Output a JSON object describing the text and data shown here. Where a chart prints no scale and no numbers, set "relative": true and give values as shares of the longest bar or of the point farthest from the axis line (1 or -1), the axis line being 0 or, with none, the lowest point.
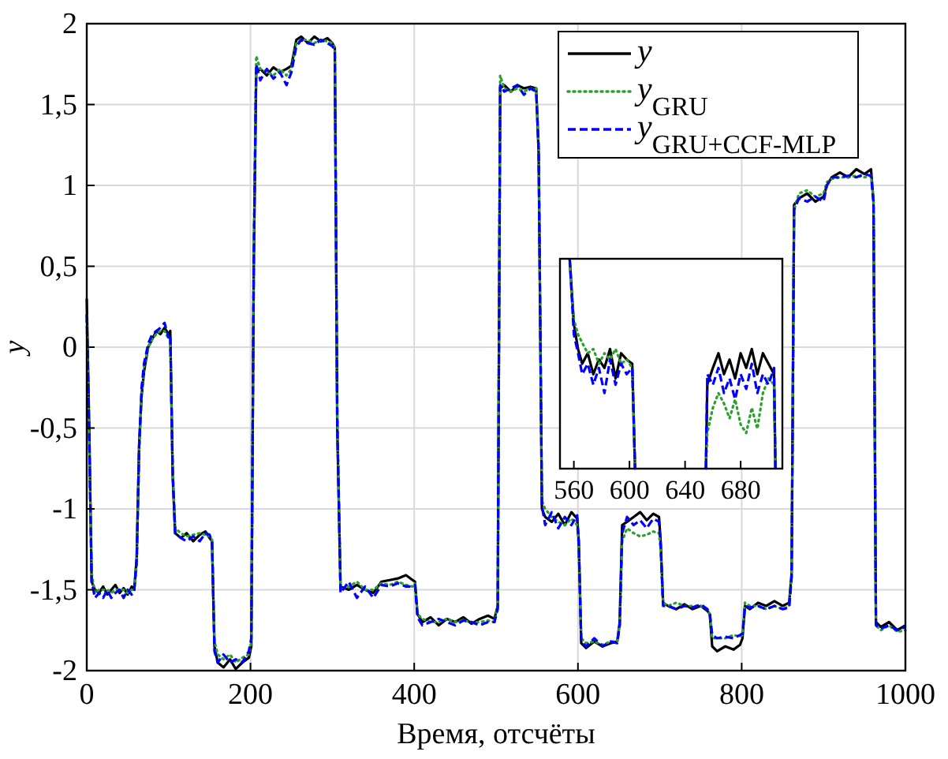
{
  "chart_data": [
    {
      "type": "line",
      "xlabel": "Время, отсчёты",
      "ylabel": "y",
      "xlim": [
        0,
        1000
      ],
      "ylim": [
        -2,
        2
      ],
      "xticks": [
        0,
        200,
        400,
        600,
        800,
        1000
      ],
      "yticks": [
        -2,
        {
          "value": -1.5,
          "label": "-1,5"
        },
        -1,
        {
          "value": -0.5,
          "label": "-0,5"
        },
        0,
        {
          "value": 0.5,
          "label": "0,5"
        },
        1,
        {
          "value": 1.5,
          "label": "1,5"
        },
        2
      ],
      "grid": true,
      "legend": "top right",
      "marker": "none",
      "x": [
        0,
        3,
        6,
        10,
        15,
        20,
        25,
        30,
        35,
        40,
        45,
        50,
        55,
        58,
        61,
        64,
        67,
        70,
        75,
        80,
        85,
        90,
        95,
        100,
        102,
        105,
        108,
        115,
        122,
        130,
        138,
        145,
        150,
        153,
        156,
        160,
        167,
        175,
        182,
        190,
        198,
        201,
        204,
        207,
        212,
        220,
        228,
        236,
        244,
        250,
        256,
        262,
        270,
        278,
        286,
        294,
        300,
        303,
        306,
        310,
        320,
        330,
        340,
        350,
        360,
        370,
        380,
        390,
        398,
        401,
        404,
        410,
        420,
        430,
        440,
        450,
        460,
        470,
        480,
        490,
        498,
        502,
        505,
        510,
        518,
        526,
        534,
        542,
        549,
        552,
        556,
        560,
        568,
        576,
        584,
        592,
        599,
        601,
        604,
        610,
        620,
        630,
        640,
        648,
        651,
        654,
        660,
        668,
        676,
        684,
        692,
        699,
        701,
        704,
        710,
        720,
        730,
        740,
        750,
        758,
        761,
        764,
        770,
        780,
        790,
        798,
        801,
        804,
        810,
        820,
        830,
        840,
        850,
        858,
        861,
        864,
        870,
        880,
        890,
        900,
        904,
        910,
        920,
        930,
        940,
        950,
        958,
        961,
        964,
        970,
        980,
        990,
        1000
      ],
      "series": [
        {
          "name": "y",
          "color": "#000000",
          "line_style": "solid",
          "values": [
            0.3,
            -0.5,
            -1.45,
            -1.5,
            -1.52,
            -1.48,
            -1.53,
            -1.5,
            -1.47,
            -1.52,
            -1.49,
            -1.53,
            -1.48,
            -1.5,
            -1.3,
            -0.6,
            -0.3,
            -0.15,
            0.0,
            0.05,
            0.1,
            0.08,
            0.12,
            0.08,
            0.1,
            -0.8,
            -1.15,
            -1.18,
            -1.15,
            -1.2,
            -1.16,
            -1.14,
            -1.18,
            -1.2,
            -1.85,
            -1.95,
            -1.98,
            -1.93,
            -1.99,
            -1.95,
            -1.92,
            -1.85,
            0.5,
            1.7,
            1.72,
            1.68,
            1.73,
            1.7,
            1.72,
            1.74,
            1.9,
            1.92,
            1.88,
            1.92,
            1.89,
            1.91,
            1.88,
            1.85,
            -0.5,
            -1.48,
            -1.5,
            -1.47,
            -1.5,
            -1.52,
            -1.45,
            -1.44,
            -1.43,
            -1.41,
            -1.44,
            -1.45,
            -1.65,
            -1.7,
            -1.67,
            -1.72,
            -1.68,
            -1.7,
            -1.67,
            -1.71,
            -1.68,
            -1.66,
            -1.68,
            -1.6,
            1.6,
            1.62,
            1.58,
            1.62,
            1.6,
            1.61,
            1.6,
            1.2,
            -1.0,
            -1.05,
            -1.08,
            -1.03,
            -1.1,
            -1.02,
            -1.06,
            -1.2,
            -1.83,
            -1.86,
            -1.82,
            -1.85,
            -1.83,
            -1.82,
            -1.7,
            -1.1,
            -1.08,
            -1.05,
            -1.02,
            -1.07,
            -1.03,
            -1.05,
            -1.2,
            -1.58,
            -1.6,
            -1.62,
            -1.59,
            -1.62,
            -1.6,
            -1.63,
            -1.65,
            -1.85,
            -1.88,
            -1.85,
            -1.87,
            -1.84,
            -1.8,
            -1.6,
            -1.62,
            -1.58,
            -1.6,
            -1.57,
            -1.6,
            -1.58,
            -1.4,
            0.88,
            0.92,
            0.95,
            0.9,
            0.93,
            1.0,
            1.05,
            1.08,
            1.05,
            1.1,
            1.07,
            1.1,
            0.9,
            -1.7,
            -1.73,
            -1.7,
            -1.75,
            -1.72
          ]
        },
        {
          "name": "y$_{GRU}$",
          "color": "#2ca02c",
          "line_style": "dotted",
          "values": [
            0.2,
            -0.6,
            -1.4,
            -1.52,
            -1.5,
            -1.5,
            -1.5,
            -1.52,
            -1.5,
            -1.5,
            -1.5,
            -1.52,
            -1.5,
            -1.5,
            -1.35,
            -0.65,
            -0.3,
            -0.12,
            0.0,
            0.05,
            0.08,
            0.1,
            0.1,
            0.05,
            0.05,
            -0.75,
            -1.12,
            -1.15,
            -1.17,
            -1.16,
            -1.15,
            -1.16,
            -1.17,
            -1.18,
            -1.82,
            -1.9,
            -1.93,
            -1.9,
            -1.95,
            -1.92,
            -1.9,
            -1.82,
            0.6,
            1.8,
            1.72,
            1.7,
            1.68,
            1.72,
            1.68,
            1.72,
            1.88,
            1.9,
            1.9,
            1.88,
            1.9,
            1.89,
            1.88,
            1.84,
            -0.4,
            -1.5,
            -1.48,
            -1.45,
            -1.5,
            -1.5,
            -1.46,
            -1.47,
            -1.45,
            -1.47,
            -1.48,
            -1.46,
            -1.65,
            -1.68,
            -1.7,
            -1.7,
            -1.68,
            -1.7,
            -1.69,
            -1.7,
            -1.7,
            -1.69,
            -1.7,
            -1.6,
            1.68,
            1.6,
            1.58,
            1.6,
            1.58,
            1.6,
            1.6,
            1.25,
            -0.95,
            -1.0,
            -1.05,
            -1.08,
            -1.1,
            -1.06,
            -1.1,
            -1.22,
            -1.8,
            -1.83,
            -1.82,
            -1.84,
            -1.82,
            -1.82,
            -1.72,
            -1.2,
            -1.12,
            -1.15,
            -1.17,
            -1.16,
            -1.14,
            -1.15,
            -1.25,
            -1.58,
            -1.6,
            -1.58,
            -1.6,
            -1.6,
            -1.6,
            -1.62,
            -1.65,
            -1.8,
            -1.8,
            -1.8,
            -1.78,
            -1.79,
            -1.78,
            -1.58,
            -1.6,
            -1.6,
            -1.62,
            -1.6,
            -1.62,
            -1.6,
            -1.42,
            0.85,
            0.95,
            0.97,
            0.93,
            0.95,
            1.02,
            1.04,
            1.05,
            1.05,
            1.06,
            1.05,
            1.06,
            0.92,
            -1.72,
            -1.75,
            -1.72,
            -1.76,
            -1.75
          ]
        },
        {
          "name": "y$_{GRU+CCF-MLP}$",
          "color": "#0000ff",
          "line_style": "dashed",
          "values": [
            0.2,
            -0.55,
            -1.45,
            -1.55,
            -1.52,
            -1.55,
            -1.5,
            -1.55,
            -1.52,
            -1.5,
            -1.55,
            -1.5,
            -1.53,
            -1.5,
            -1.32,
            -0.62,
            -0.25,
            -0.1,
            0.02,
            0.08,
            0.1,
            0.12,
            0.15,
            0.06,
            0.08,
            -0.78,
            -1.15,
            -1.18,
            -1.2,
            -1.17,
            -1.2,
            -1.15,
            -1.16,
            -1.2,
            -1.88,
            -1.95,
            -1.9,
            -1.95,
            -1.93,
            -1.95,
            -1.88,
            -1.8,
            0.55,
            1.75,
            1.65,
            1.72,
            1.66,
            1.7,
            1.62,
            1.7,
            1.86,
            1.9,
            1.88,
            1.87,
            1.9,
            1.88,
            1.86,
            1.84,
            -0.45,
            -1.52,
            -1.45,
            -1.55,
            -1.48,
            -1.55,
            -1.47,
            -1.48,
            -1.46,
            -1.48,
            -1.48,
            -1.47,
            -1.67,
            -1.72,
            -1.7,
            -1.68,
            -1.7,
            -1.72,
            -1.69,
            -1.7,
            -1.72,
            -1.7,
            -1.7,
            -1.62,
            1.62,
            1.58,
            1.6,
            1.62,
            1.56,
            1.6,
            1.58,
            1.22,
            -0.98,
            -1.1,
            -1.02,
            -1.12,
            -1.05,
            -1.1,
            -1.04,
            -1.22,
            -1.82,
            -1.85,
            -1.8,
            -1.85,
            -1.82,
            -1.83,
            -1.72,
            -1.15,
            -1.05,
            -1.1,
            -1.07,
            -1.12,
            -1.06,
            -1.08,
            -1.22,
            -1.6,
            -1.6,
            -1.62,
            -1.6,
            -1.61,
            -1.59,
            -1.62,
            -1.64,
            -1.78,
            -1.8,
            -1.79,
            -1.8,
            -1.78,
            -1.77,
            -1.6,
            -1.61,
            -1.6,
            -1.62,
            -1.6,
            -1.62,
            -1.61,
            -1.42,
            0.85,
            0.92,
            0.9,
            0.93,
            0.9,
            1.0,
            1.05,
            1.05,
            1.06,
            1.05,
            1.07,
            1.06,
            0.9,
            -1.72,
            -1.74,
            -1.72,
            -1.75,
            -1.73
          ]
        }
      ]
    },
    {
      "type": "line",
      "xlim": [
        550,
        710
      ],
      "xticks": [
        560,
        600,
        640,
        680
      ],
      "relative": true,
      "marker": "none",
      "x": [
        557,
        560,
        563,
        566,
        570,
        574,
        578,
        582,
        586,
        590,
        594,
        598,
        602,
        604,
        630,
        655,
        656,
        660,
        664,
        668,
        672,
        676,
        680,
        684,
        688,
        692,
        696,
        700,
        704,
        705
      ],
      "series": [
        {
          "color": "#000000",
          "line_style": "solid",
          "values": [
            1.0,
            0.69,
            0.57,
            0.5,
            0.55,
            0.45,
            0.52,
            0.48,
            0.57,
            0.43,
            0.55,
            0.52,
            0.5,
            0,
            null,
            0,
            0.4,
            0.48,
            0.55,
            0.45,
            0.52,
            0.43,
            0.55,
            0.48,
            0.57,
            0.45,
            0.55,
            0.5,
            0.45,
            0
          ]
        },
        {
          "color": "#2ca02c",
          "line_style": "dotted",
          "values": [
            0.98,
            0.71,
            0.64,
            0.6,
            0.55,
            0.57,
            0.5,
            0.55,
            0.52,
            0.57,
            0.5,
            0.52,
            0.48,
            0,
            null,
            0,
            0.17,
            0.29,
            0.36,
            0.31,
            0.24,
            0.33,
            0.21,
            0.17,
            0.29,
            0.19,
            0.36,
            0.43,
            0.4,
            0
          ]
        },
        {
          "color": "#0000ff",
          "line_style": "dashed",
          "values": [
            1.0,
            0.64,
            0.55,
            0.45,
            0.5,
            0.4,
            0.48,
            0.36,
            0.52,
            0.4,
            0.5,
            0.45,
            0.48,
            0,
            null,
            0,
            0.45,
            0.4,
            0.48,
            0.36,
            0.43,
            0.33,
            0.45,
            0.38,
            0.5,
            0.36,
            0.45,
            0.4,
            0.48,
            0
          ]
        }
      ]
    }
  ]
}
